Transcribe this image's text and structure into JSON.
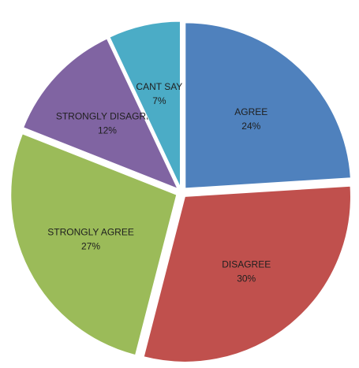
{
  "chart_data": {
    "type": "pie",
    "title": "",
    "categories": [
      "AGREE",
      "DISAGREE",
      "STRONGLY AGREE",
      "STRONGLY DISAGREE",
      "CANT SAY"
    ],
    "values": [
      24,
      30,
      27,
      12,
      7
    ],
    "value_labels": [
      "24%",
      "30%",
      "27%",
      "12%",
      "7%"
    ],
    "colors": [
      "#4f81bd",
      "#c0504d",
      "#9bbb59",
      "#8064a2",
      "#4bacc6"
    ],
    "exploded": true,
    "legend": "none",
    "start_angle": "top",
    "direction": "clockwise"
  }
}
